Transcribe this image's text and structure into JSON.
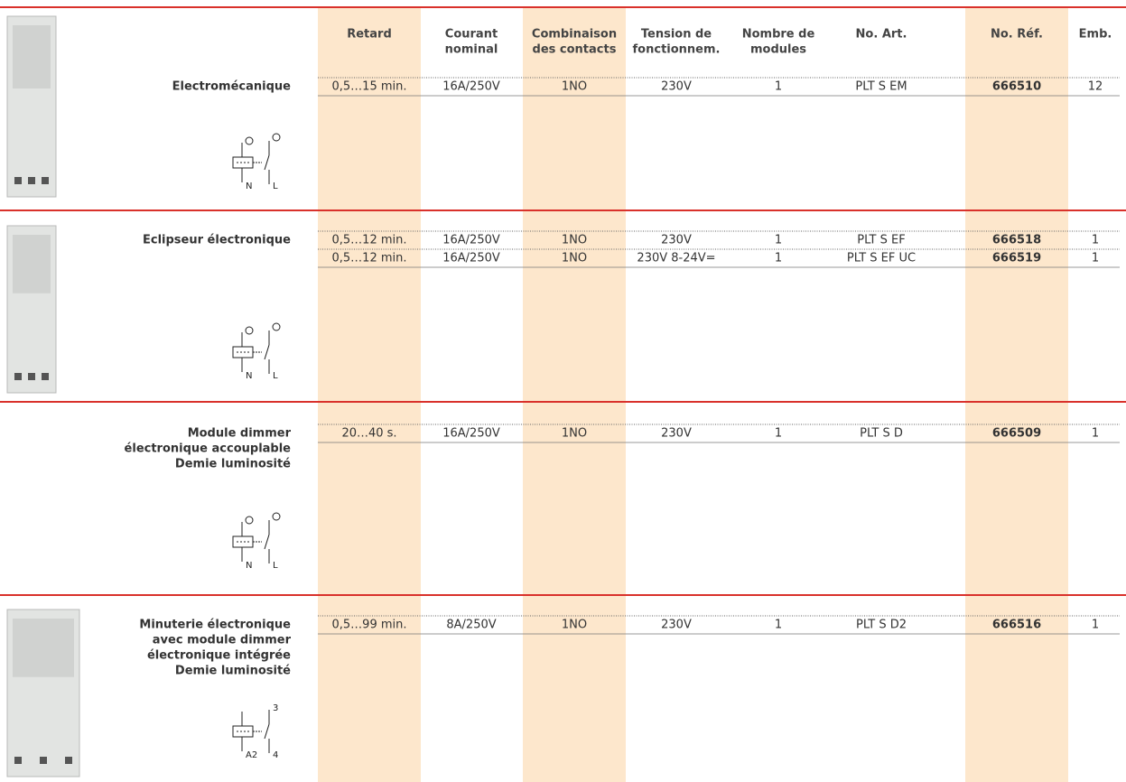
{
  "header": {
    "columns": [
      [
        "Retard"
      ],
      [
        "Courant",
        "nominal"
      ],
      [
        "Combinaison",
        "des contacts"
      ],
      [
        "Tension de",
        "fonctionnem."
      ],
      [
        "Nombre de",
        "modules"
      ],
      [
        "No. Art."
      ],
      [
        "No. Réf."
      ],
      [
        "Emb."
      ]
    ]
  },
  "sections": [
    {
      "label": [
        "Electromécanique"
      ],
      "symbol_labels": [
        "N",
        "L"
      ],
      "rows": [
        [
          "0,5…15 min.",
          "16A/250V",
          "1NO",
          "230V",
          "1",
          "PLT S EM",
          "666510",
          "12"
        ]
      ]
    },
    {
      "label": [
        "Eclipseur électronique"
      ],
      "symbol_labels": [
        "N",
        "L"
      ],
      "rows": [
        [
          "0,5…12 min.",
          "16A/250V",
          "1NO",
          "230V",
          "1",
          "PLT S EF",
          "666518",
          "1"
        ],
        [
          "0,5…12 min.",
          "16A/250V",
          "1NO",
          "230V 8-24V=",
          "1",
          "PLT S EF UC",
          "666519",
          "1"
        ]
      ]
    },
    {
      "label": [
        "Module dimmer",
        "électronique accouplable",
        "Demie luminosité"
      ],
      "symbol_labels": [
        "N",
        "L"
      ],
      "rows": [
        [
          "20…40 s.",
          "16A/250V",
          "1NO",
          "230V",
          "1",
          "PLT S D",
          "666509",
          "1"
        ]
      ]
    },
    {
      "label": [
        "Minuterie électronique",
        "avec module dimmer",
        "électronique intégrée",
        "Demie luminosité"
      ],
      "symbol_labels": [
        "A2",
        "3",
        "4"
      ],
      "rows": [
        [
          "0,5…99 min.",
          "8A/250V",
          "1NO",
          "230V",
          "1",
          "PLT S D2",
          "666516",
          "1"
        ]
      ]
    }
  ]
}
